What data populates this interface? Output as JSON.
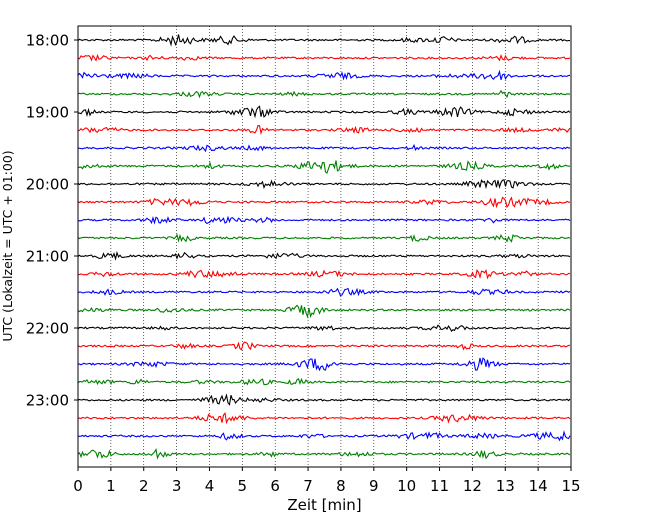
{
  "chart_data": {
    "type": "line",
    "title": "",
    "xlabel": "Zeit  [min]",
    "ylabel": "UTC (Lokalzeit = UTC + 01:00)",
    "xlim": [
      0,
      15
    ],
    "x_ticks": [
      "0",
      "1",
      "2",
      "3",
      "4",
      "5",
      "6",
      "7",
      "8",
      "9",
      "10",
      "11",
      "12",
      "13",
      "14",
      "15"
    ],
    "y_ticks": [
      "18:00",
      "19:00",
      "20:00",
      "21:00",
      "22:00",
      "23:00"
    ],
    "grid": "vertical dotted",
    "trace_interval_minutes": 15,
    "first_trace": "18:00",
    "trace_count": 24,
    "trace_colors": [
      "#000000",
      "#ff0000",
      "#0000ff",
      "#008000"
    ],
    "series": [
      {
        "start": "18:00",
        "color": "#000000"
      },
      {
        "start": "18:15",
        "color": "#ff0000"
      },
      {
        "start": "18:30",
        "color": "#0000ff"
      },
      {
        "start": "18:45",
        "color": "#008000"
      },
      {
        "start": "19:00",
        "color": "#000000"
      },
      {
        "start": "19:15",
        "color": "#ff0000"
      },
      {
        "start": "19:30",
        "color": "#0000ff"
      },
      {
        "start": "19:45",
        "color": "#008000"
      },
      {
        "start": "20:00",
        "color": "#000000"
      },
      {
        "start": "20:15",
        "color": "#ff0000"
      },
      {
        "start": "20:30",
        "color": "#0000ff"
      },
      {
        "start": "20:45",
        "color": "#008000"
      },
      {
        "start": "21:00",
        "color": "#000000"
      },
      {
        "start": "21:15",
        "color": "#ff0000"
      },
      {
        "start": "21:30",
        "color": "#0000ff"
      },
      {
        "start": "21:45",
        "color": "#008000"
      },
      {
        "start": "22:00",
        "color": "#000000"
      },
      {
        "start": "22:15",
        "color": "#ff0000"
      },
      {
        "start": "22:30",
        "color": "#0000ff"
      },
      {
        "start": "22:45",
        "color": "#008000"
      },
      {
        "start": "23:00",
        "color": "#000000"
      },
      {
        "start": "23:15",
        "color": "#ff0000"
      },
      {
        "start": "23:30",
        "color": "#0000ff"
      },
      {
        "start": "23:45",
        "color": "#008000"
      }
    ]
  }
}
